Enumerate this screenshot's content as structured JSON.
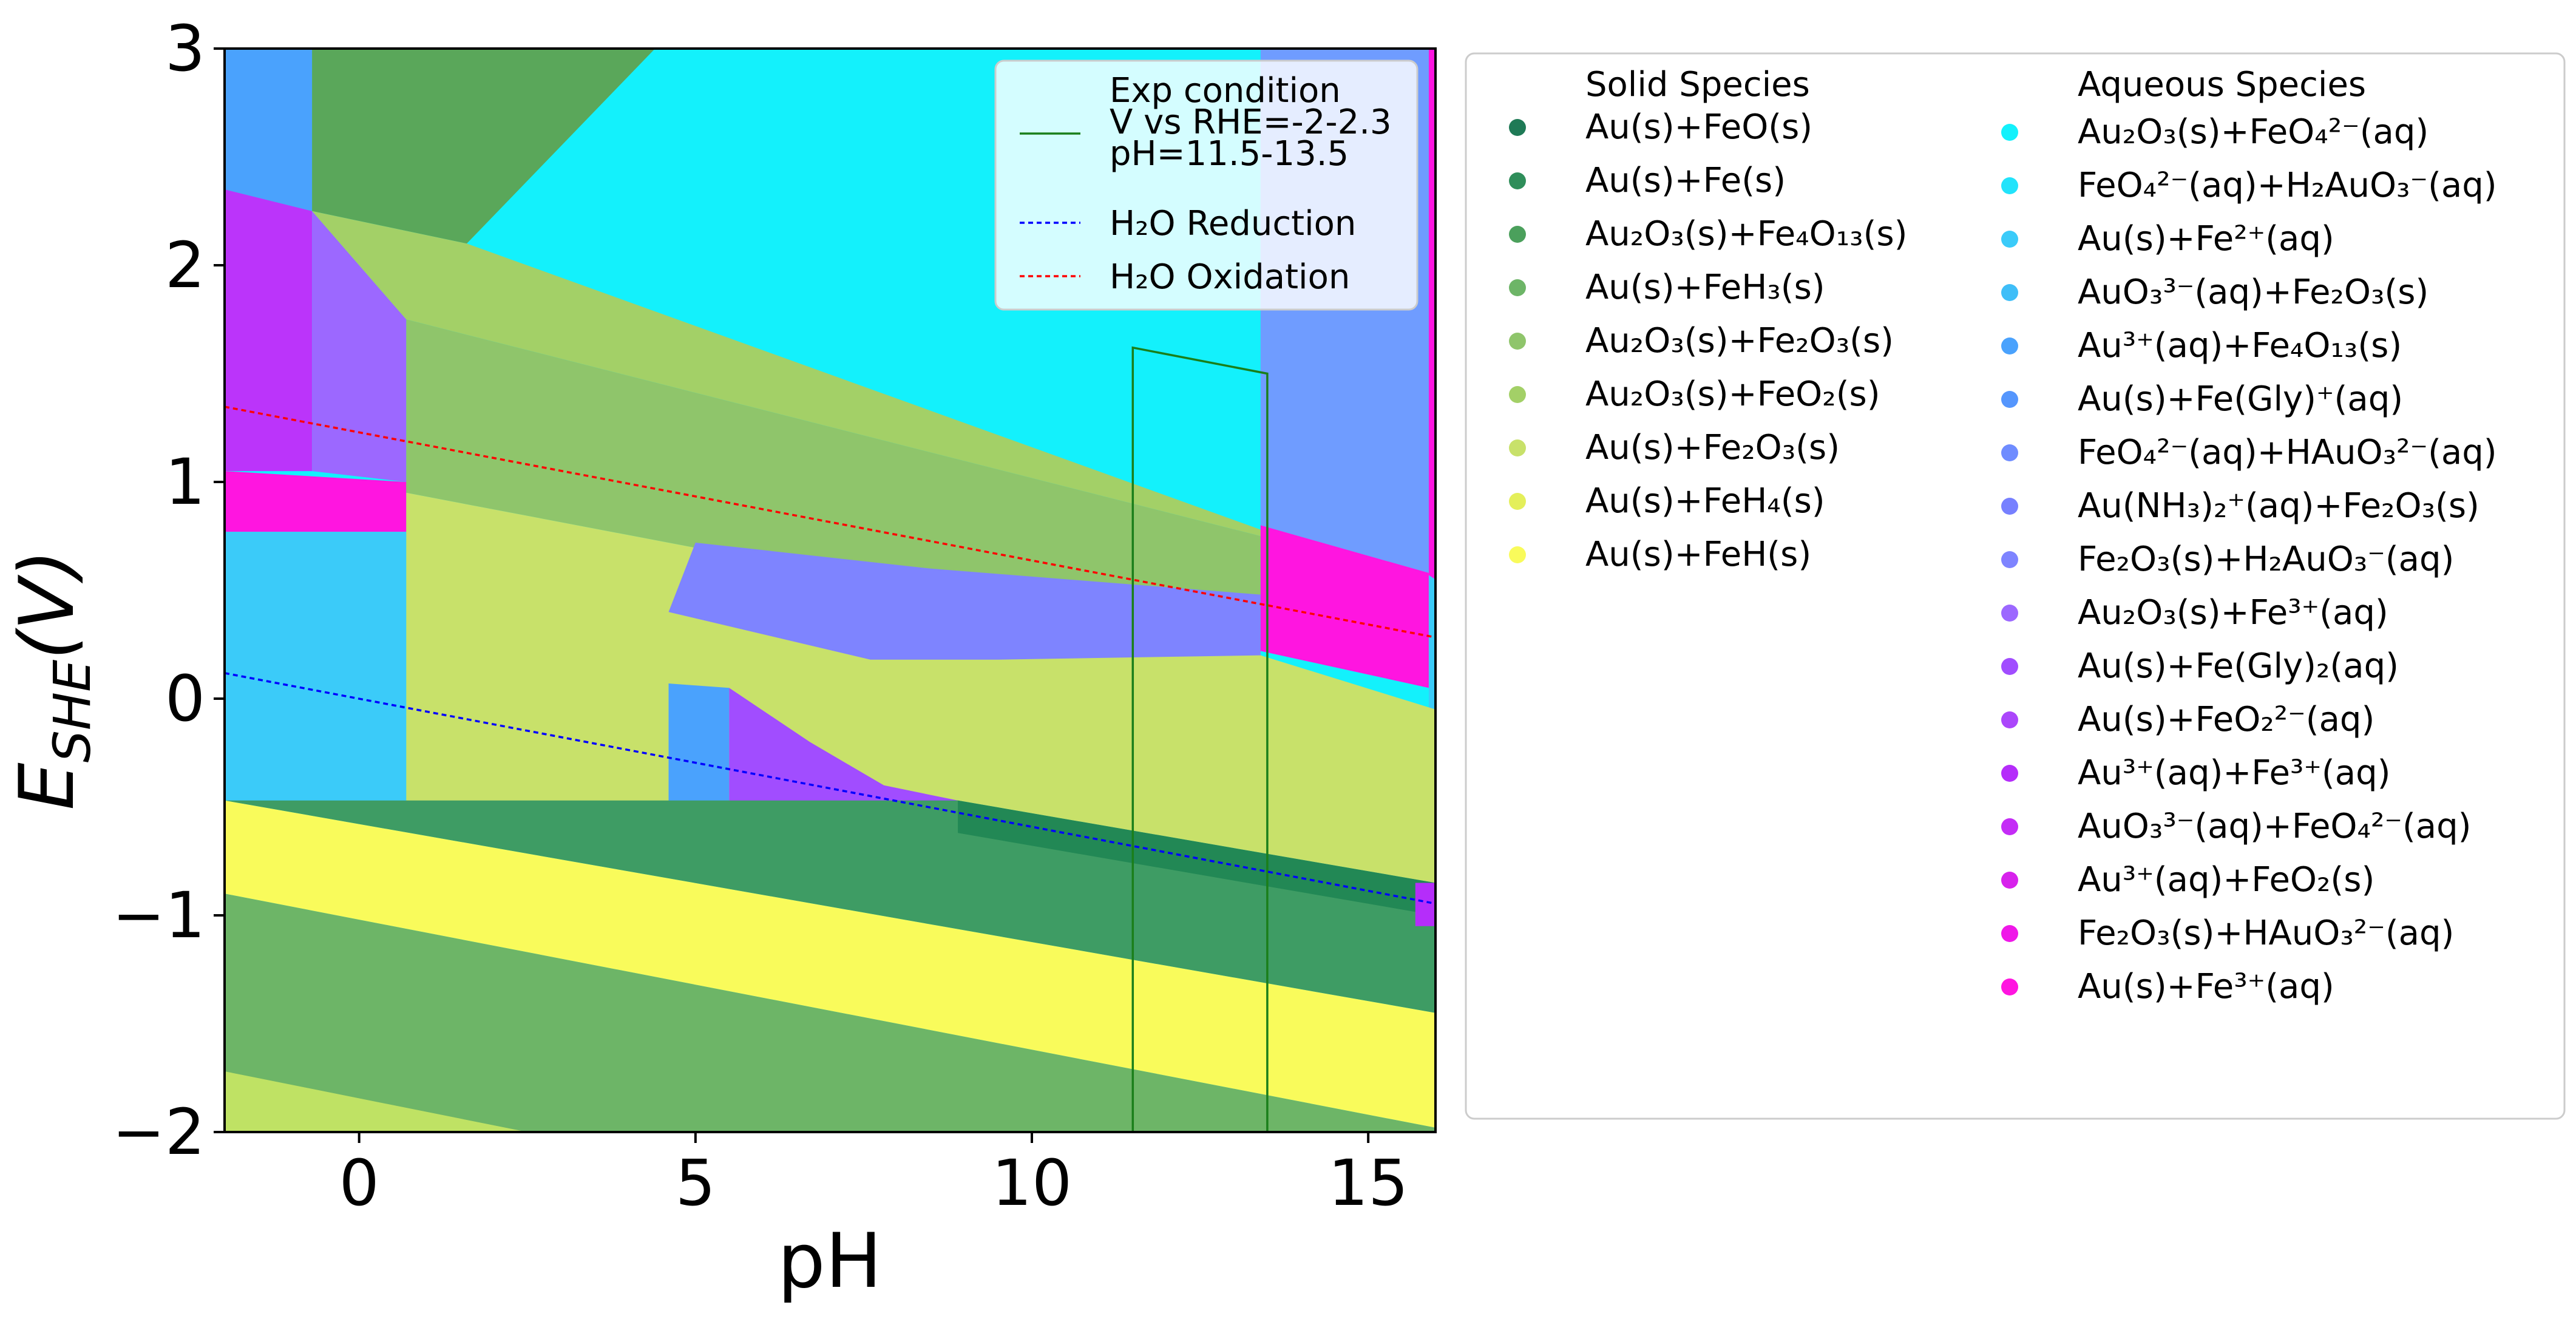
{
  "chart_data": {
    "type": "area",
    "title": "",
    "xlabel": "pH",
    "ylabel": "E_SHE(V)",
    "ylabel_display": "E",
    "ylabel_sub": "SHE",
    "ylabel_tail": "(V)",
    "xlim": [
      -2,
      16
    ],
    "ylim": [
      -2,
      3
    ],
    "xticks": [
      {
        "value": 0,
        "label": "0"
      },
      {
        "value": 5,
        "label": "5"
      },
      {
        "value": 10,
        "label": "10"
      },
      {
        "value": 15,
        "label": "15"
      }
    ],
    "yticks": [
      {
        "value": -2,
        "label": "−2"
      },
      {
        "value": -1,
        "label": "−1"
      },
      {
        "value": 0,
        "label": "0"
      },
      {
        "value": 1,
        "label": "1"
      },
      {
        "value": 2,
        "label": "2"
      },
      {
        "value": 3,
        "label": "3"
      }
    ],
    "grid": false,
    "regions": [
      {
        "color": "#13f1fc",
        "points": [
          [
            -2,
            3
          ],
          [
            16,
            3
          ],
          [
            16,
            -2
          ],
          [
            -2,
            -2
          ]
        ]
      },
      {
        "color": "#6f9cff",
        "points": [
          [
            13.4,
            3
          ],
          [
            15.9,
            3
          ],
          [
            15.9,
            0.58
          ],
          [
            13.4,
            0.78
          ]
        ]
      },
      {
        "color": "#3bcbf9",
        "points": [
          [
            15.9,
            3
          ],
          [
            16,
            3
          ],
          [
            16,
            -2
          ],
          [
            15.9,
            -2
          ]
        ]
      },
      {
        "color": "#ff15e0",
        "points": [
          [
            15.9,
            3
          ],
          [
            16,
            3
          ],
          [
            16,
            0.55
          ],
          [
            15.9,
            0.57
          ]
        ]
      },
      {
        "color": "#4aa2fd",
        "points": [
          [
            -2,
            3
          ],
          [
            -0.7,
            3
          ],
          [
            -0.7,
            2.25
          ],
          [
            -2,
            2.35
          ]
        ]
      },
      {
        "color": "#5aa75a",
        "points": [
          [
            -0.7,
            3
          ],
          [
            4.4,
            3
          ],
          [
            1.6,
            2.1
          ],
          [
            -0.7,
            2.25
          ]
        ]
      },
      {
        "color": "#bb34fa",
        "points": [
          [
            -2,
            2.35
          ],
          [
            -0.7,
            2.25
          ],
          [
            -0.7,
            1.05
          ],
          [
            -2,
            1.05
          ]
        ]
      },
      {
        "color": "#9c68ff",
        "points": [
          [
            -0.7,
            2.25
          ],
          [
            0.7,
            1.75
          ],
          [
            0.7,
            1.0
          ],
          [
            -0.7,
            1.05
          ]
        ]
      },
      {
        "color": "#ff15e0",
        "points": [
          [
            -2,
            1.05
          ],
          [
            0.7,
            1.0
          ],
          [
            0.7,
            0.77
          ],
          [
            -2,
            0.77
          ]
        ]
      },
      {
        "color": "#3bcbf9",
        "points": [
          [
            -2,
            0.77
          ],
          [
            0.7,
            0.77
          ],
          [
            0.7,
            -0.5
          ],
          [
            -2,
            -0.47
          ]
        ]
      },
      {
        "color": "#a3d067",
        "points": [
          [
            -0.7,
            2.25
          ],
          [
            1.6,
            2.1
          ],
          [
            13.4,
            0.78
          ],
          [
            13.4,
            0.75
          ],
          [
            0.7,
            1.75
          ]
        ]
      },
      {
        "color": "#8fc56b",
        "points": [
          [
            0.7,
            1.75
          ],
          [
            13.4,
            0.75
          ],
          [
            13.4,
            0.2
          ],
          [
            0.7,
            0.95
          ]
        ]
      },
      {
        "color": "#c8e16a",
        "points": [
          [
            0.7,
            0.95
          ],
          [
            13.4,
            0.2
          ],
          [
            16,
            -0.05
          ],
          [
            16,
            -0.85
          ],
          [
            8.9,
            -0.47
          ],
          [
            0.7,
            -0.5
          ],
          [
            0.7,
            0.77
          ]
        ]
      },
      {
        "color": "#7e84ff",
        "points": [
          [
            5,
            0.72
          ],
          [
            8.5,
            0.6
          ],
          [
            13.4,
            0.48
          ],
          [
            13.4,
            0.2
          ],
          [
            9.5,
            0.18
          ],
          [
            7.6,
            0.18
          ],
          [
            4.6,
            0.4
          ]
        ]
      },
      {
        "color": "#4aa2fd",
        "points": [
          [
            4.6,
            0.07
          ],
          [
            5.5,
            0.05
          ],
          [
            5.5,
            -0.53
          ],
          [
            4.6,
            -0.52
          ]
        ]
      },
      {
        "color": "#a14dff",
        "points": [
          [
            5.5,
            0.05
          ],
          [
            6.7,
            -0.2
          ],
          [
            7.8,
            -0.4
          ],
          [
            8.9,
            -0.47
          ],
          [
            8.9,
            -0.63
          ],
          [
            5.5,
            -0.6
          ]
        ]
      },
      {
        "color": "#ff15e0",
        "points": [
          [
            13.4,
            0.8
          ],
          [
            15.9,
            0.58
          ],
          [
            15.9,
            0.05
          ],
          [
            13.4,
            0.22
          ]
        ]
      },
      {
        "color": "#3e9c64",
        "points": [
          [
            -2,
            -0.47
          ],
          [
            8.9,
            -0.47
          ],
          [
            16,
            -0.85
          ],
          [
            16,
            -1.45
          ],
          [
            -2,
            -0.47
          ]
        ]
      },
      {
        "color": "#228855",
        "points": [
          [
            8.9,
            -0.47
          ],
          [
            16,
            -0.85
          ],
          [
            16,
            -1.0
          ],
          [
            8.9,
            -0.62
          ]
        ]
      },
      {
        "color": "#b52dfa",
        "points": [
          [
            15.7,
            -0.85
          ],
          [
            16,
            -0.85
          ],
          [
            16,
            -1.05
          ],
          [
            15.7,
            -1.05
          ]
        ]
      },
      {
        "color": "#f9fb5b",
        "points": [
          [
            -2,
            -0.47
          ],
          [
            16,
            -1.45
          ],
          [
            16,
            -1.98
          ],
          [
            -2,
            -0.9
          ]
        ]
      },
      {
        "color": "#6db567",
        "points": [
          [
            -2,
            -0.9
          ],
          [
            16,
            -1.98
          ],
          [
            16,
            -2
          ],
          [
            -2,
            -2
          ]
        ]
      },
      {
        "color": "#bfe264",
        "points": [
          [
            -2,
            -1.72
          ],
          [
            2.5,
            -2
          ],
          [
            -2,
            -2
          ]
        ]
      }
    ],
    "lines": [
      {
        "name": "Exp condition\nV vs RHE=-2-2.3\npH=11.5-13.5",
        "color": "#1a7f1a",
        "dash": "",
        "points": [
          [
            11.5,
            -2
          ],
          [
            11.5,
            1.62
          ],
          [
            13.5,
            1.5
          ],
          [
            13.5,
            -2
          ]
        ]
      },
      {
        "name": "H2O Reduction",
        "color": "#0000ff",
        "dash": "8,6",
        "points": [
          [
            -2,
            0.118
          ],
          [
            16,
            -0.946
          ]
        ]
      },
      {
        "name": "H2O Oxidation",
        "color": "#ff0000",
        "dash": "8,6",
        "points": [
          [
            -2,
            1.347
          ],
          [
            16,
            0.283
          ]
        ]
      }
    ],
    "legend_lines": [
      {
        "label_lines": [
          "Exp condition",
          "V vs RHE=-2-2.3",
          "pH=11.5-13.5"
        ],
        "color": "#1a7f1a",
        "dash": ""
      },
      {
        "label": "H₂O Reduction",
        "color": "#0000ff",
        "dash": "8,6"
      },
      {
        "label": "H₂O Oxidation",
        "color": "#ff0000",
        "dash": "8,6"
      }
    ],
    "legend_line_placement": "top-right inside plot",
    "legend_species_placement": "right outside plot",
    "solid_header": "Solid Species",
    "aqueous_header": "Aqueous Species",
    "solid_species": [
      {
        "label": "Au(s)+FeO(s)",
        "color": "#1f7a56"
      },
      {
        "label": "Au(s)+Fe(s)",
        "color": "#2f8e5a"
      },
      {
        "label": "Au₂O₃(s)+Fe₄O₁₃(s)",
        "color": "#4ba05c"
      },
      {
        "label": "Au(s)+FeH₃(s)",
        "color": "#6db567"
      },
      {
        "label": "Au₂O₃(s)+Fe₂O₃(s)",
        "color": "#8fc56b"
      },
      {
        "label": "Au₂O₃(s)+FeO₂(s)",
        "color": "#a3d067"
      },
      {
        "label": "Au(s)+Fe₂O₃(s)",
        "color": "#c8e16a"
      },
      {
        "label": "Au(s)+FeH₄(s)",
        "color": "#e4ef5a"
      },
      {
        "label": "Au(s)+FeH(s)",
        "color": "#f9fb5b"
      }
    ],
    "aqueous_species": [
      {
        "label": "Au₂O₃(s)+FeO₄²⁻(aq)",
        "color": "#13f1fc"
      },
      {
        "label": "FeO₄²⁻(aq)+H₂AuO₃⁻(aq)",
        "color": "#22e3fb"
      },
      {
        "label": "Au(s)+Fe²⁺(aq)",
        "color": "#3bcbf9"
      },
      {
        "label": "AuO₃³⁻(aq)+Fe₂O₃(s)",
        "color": "#3fbef8"
      },
      {
        "label": "Au³⁺(aq)+Fe₄O₁₃(s)",
        "color": "#4aa2fd"
      },
      {
        "label": "Au(s)+Fe(Gly)⁺(aq)",
        "color": "#5596fd"
      },
      {
        "label": "FeO₄²⁻(aq)+HAuO₃²⁻(aq)",
        "color": "#6f8cff"
      },
      {
        "label": "Au(NH₃)₂⁺(aq)+Fe₂O₃(s)",
        "color": "#7780ff"
      },
      {
        "label": "Fe₂O₃(s)+H₂AuO₃⁻(aq)",
        "color": "#7e84ff"
      },
      {
        "label": "Au₂O₃(s)+Fe³⁺(aq)",
        "color": "#9c68ff"
      },
      {
        "label": "Au(s)+Fe(Gly)₂(aq)",
        "color": "#a14dff"
      },
      {
        "label": "Au(s)+FeO₂²⁻(aq)",
        "color": "#ab46fb"
      },
      {
        "label": "Au³⁺(aq)+Fe³⁺(aq)",
        "color": "#b52dfa"
      },
      {
        "label": "AuO₃³⁻(aq)+FeO₄²⁻(aq)",
        "color": "#c42cf6"
      },
      {
        "label": "Au³⁺(aq)+FeO₂(s)",
        "color": "#d722ec"
      },
      {
        "label": "Fe₂O₃(s)+HAuO₃²⁻(aq)",
        "color": "#ef18e8"
      },
      {
        "label": "Au(s)+Fe³⁺(aq)",
        "color": "#ff15e0"
      }
    ]
  }
}
